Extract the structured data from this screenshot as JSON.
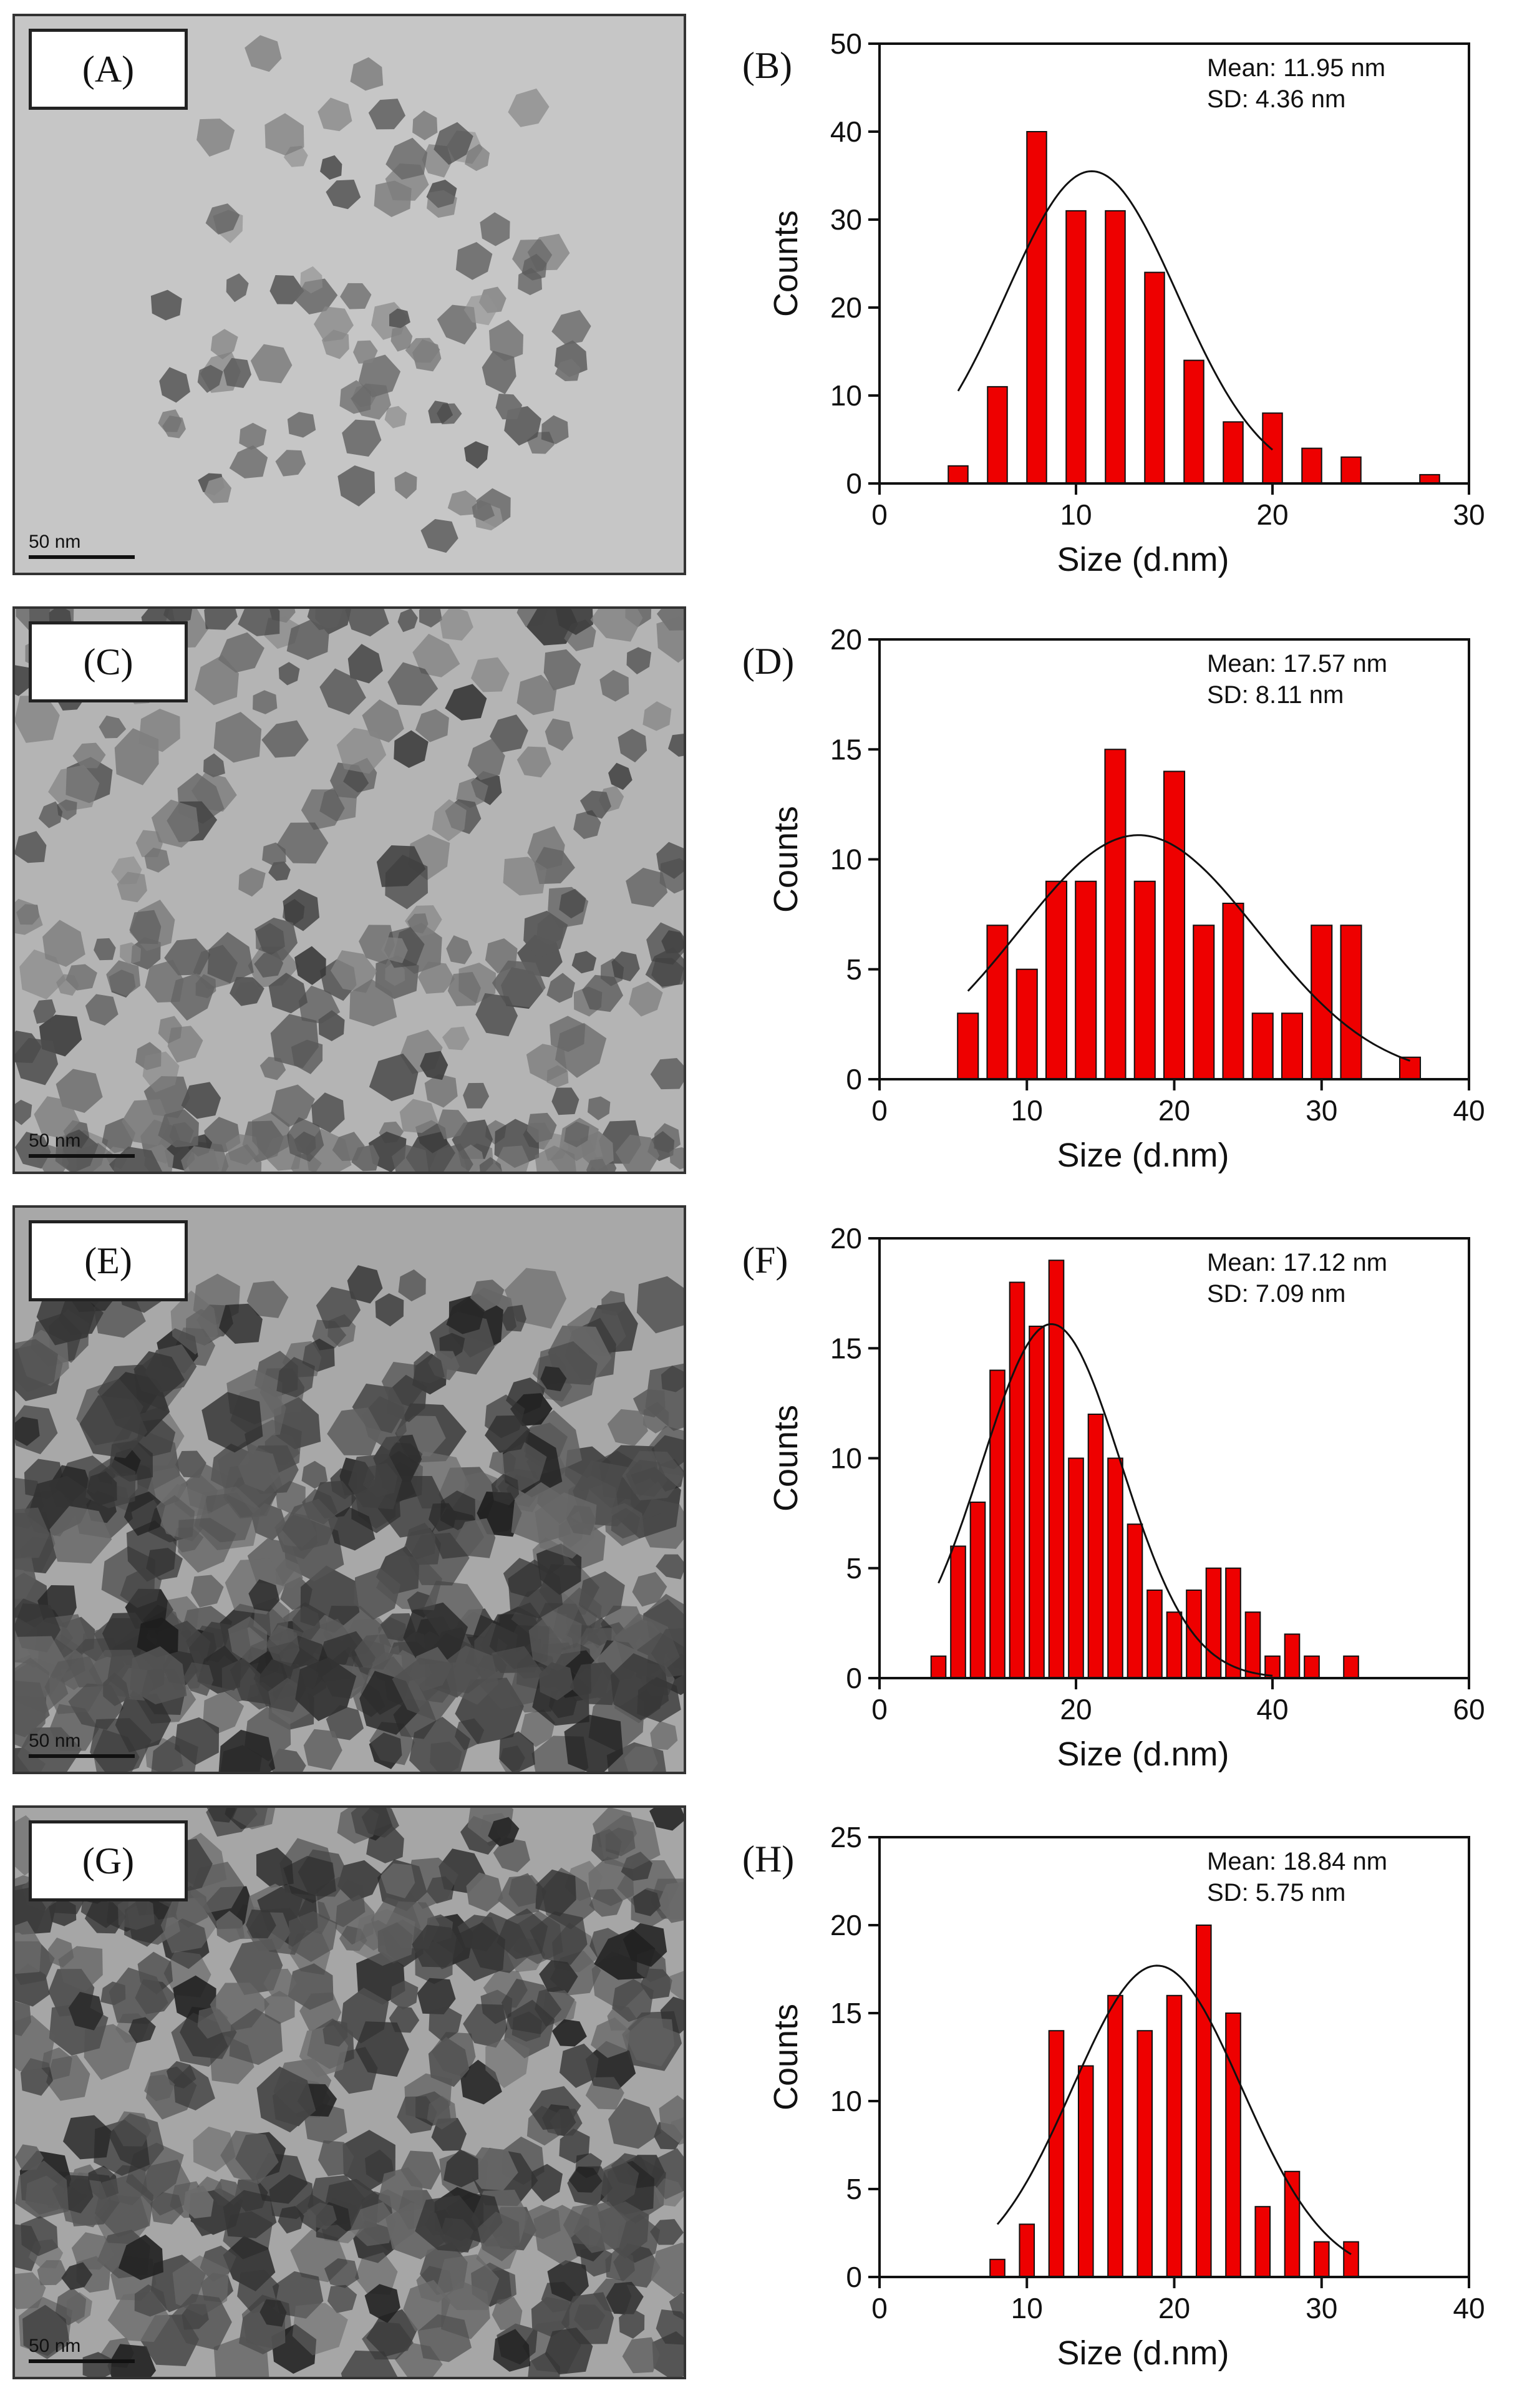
{
  "panels": [
    {
      "image_label": "(A)",
      "scale_text": "50 nm",
      "tone": "light",
      "seed": 3
    },
    {
      "image_label": "(C)",
      "scale_text": "50 nm",
      "tone": "medium",
      "seed": 11
    },
    {
      "image_label": "(E)",
      "scale_text": "50 nm",
      "tone": "dark",
      "seed": 23
    },
    {
      "image_label": "(G)",
      "scale_text": "50 nm",
      "tone": "dark2",
      "seed": 41
    }
  ],
  "chart_data": [
    {
      "type": "bar",
      "panel_label": "(B)",
      "xlabel": "Size (d.nm)",
      "ylabel": "Counts",
      "xlim": [
        0,
        30
      ],
      "ylim": [
        0,
        50
      ],
      "xticks": [
        0,
        10,
        20,
        30
      ],
      "yticks": [
        0,
        10,
        20,
        30,
        40,
        50
      ],
      "bar_width": 1.0,
      "x": [
        4,
        6,
        8,
        10,
        12,
        14,
        16,
        18,
        20,
        22,
        24,
        28
      ],
      "values": [
        2,
        11,
        40,
        31,
        31,
        24,
        14,
        7,
        8,
        4,
        3,
        1
      ],
      "fit": {
        "type": "gaussian",
        "mu": 10.8,
        "sigma": 4.36,
        "peak": 35.5,
        "x_range": [
          4,
          20
        ]
      },
      "stats": [
        "Mean: 11.95 nm",
        "SD: 4.36 nm"
      ],
      "bar_color": "#ee0000",
      "grid": false
    },
    {
      "type": "bar",
      "panel_label": "(D)",
      "xlabel": "Size (d.nm)",
      "ylabel": "Counts",
      "xlim": [
        0,
        40
      ],
      "ylim": [
        0,
        20
      ],
      "xticks": [
        0,
        10,
        20,
        30,
        40
      ],
      "yticks": [
        0,
        5,
        10,
        15,
        20
      ],
      "bar_width": 1.4,
      "x": [
        6,
        8,
        10,
        12,
        14,
        16,
        18,
        20,
        22,
        24,
        26,
        28,
        30,
        32,
        36
      ],
      "values": [
        3,
        7,
        5,
        9,
        9,
        15,
        9,
        14,
        7,
        8,
        3,
        3,
        7,
        7,
        1
      ],
      "fit": {
        "type": "gaussian",
        "mu": 17.57,
        "sigma": 8.11,
        "peak": 11.1,
        "x_range": [
          6,
          36
        ]
      },
      "stats": [
        "Mean: 17.57 nm",
        "SD: 8.11 nm"
      ],
      "bar_color": "#ee0000",
      "grid": false
    },
    {
      "type": "bar",
      "panel_label": "(F)",
      "xlabel": "Size (d.nm)",
      "ylabel": "Counts",
      "xlim": [
        0,
        60
      ],
      "ylim": [
        0,
        20
      ],
      "xticks": [
        0,
        20,
        40,
        60
      ],
      "yticks": [
        0,
        5,
        10,
        15,
        20
      ],
      "bar_width": 1.5,
      "x": [
        6,
        8,
        10,
        12,
        14,
        16,
        18,
        20,
        22,
        24,
        26,
        28,
        30,
        32,
        34,
        36,
        38,
        40,
        42,
        44,
        48
      ],
      "values": [
        1,
        6,
        8,
        14,
        18,
        16,
        19,
        10,
        12,
        10,
        7,
        4,
        3,
        4,
        5,
        5,
        3,
        1,
        2,
        1,
        1
      ],
      "fit": {
        "type": "gaussian",
        "mu": 17.5,
        "sigma": 7.09,
        "peak": 16.1,
        "x_range": [
          6,
          40
        ]
      },
      "stats": [
        "Mean: 17.12 nm",
        "SD: 7.09 nm"
      ],
      "bar_color": "#ee0000",
      "grid": false
    },
    {
      "type": "bar",
      "panel_label": "(H)",
      "xlabel": "Size (d.nm)",
      "ylabel": "Counts",
      "xlim": [
        0,
        40
      ],
      "ylim": [
        0,
        25
      ],
      "xticks": [
        0,
        10,
        20,
        30,
        40
      ],
      "yticks": [
        0,
        5,
        10,
        15,
        20,
        25
      ],
      "bar_width": 1.0,
      "x": [
        8,
        10,
        12,
        14,
        16,
        18,
        20,
        22,
        24,
        26,
        28,
        30,
        32
      ],
      "values": [
        1,
        3,
        14,
        12,
        16,
        14,
        16,
        20,
        15,
        4,
        6,
        2,
        2
      ],
      "fit": {
        "type": "gaussian",
        "mu": 18.84,
        "sigma": 5.75,
        "peak": 17.7,
        "x_range": [
          8,
          32
        ]
      },
      "stats": [
        "Mean: 18.84 nm",
        "SD: 5.75 nm"
      ],
      "bar_color": "#ee0000",
      "grid": false
    }
  ]
}
